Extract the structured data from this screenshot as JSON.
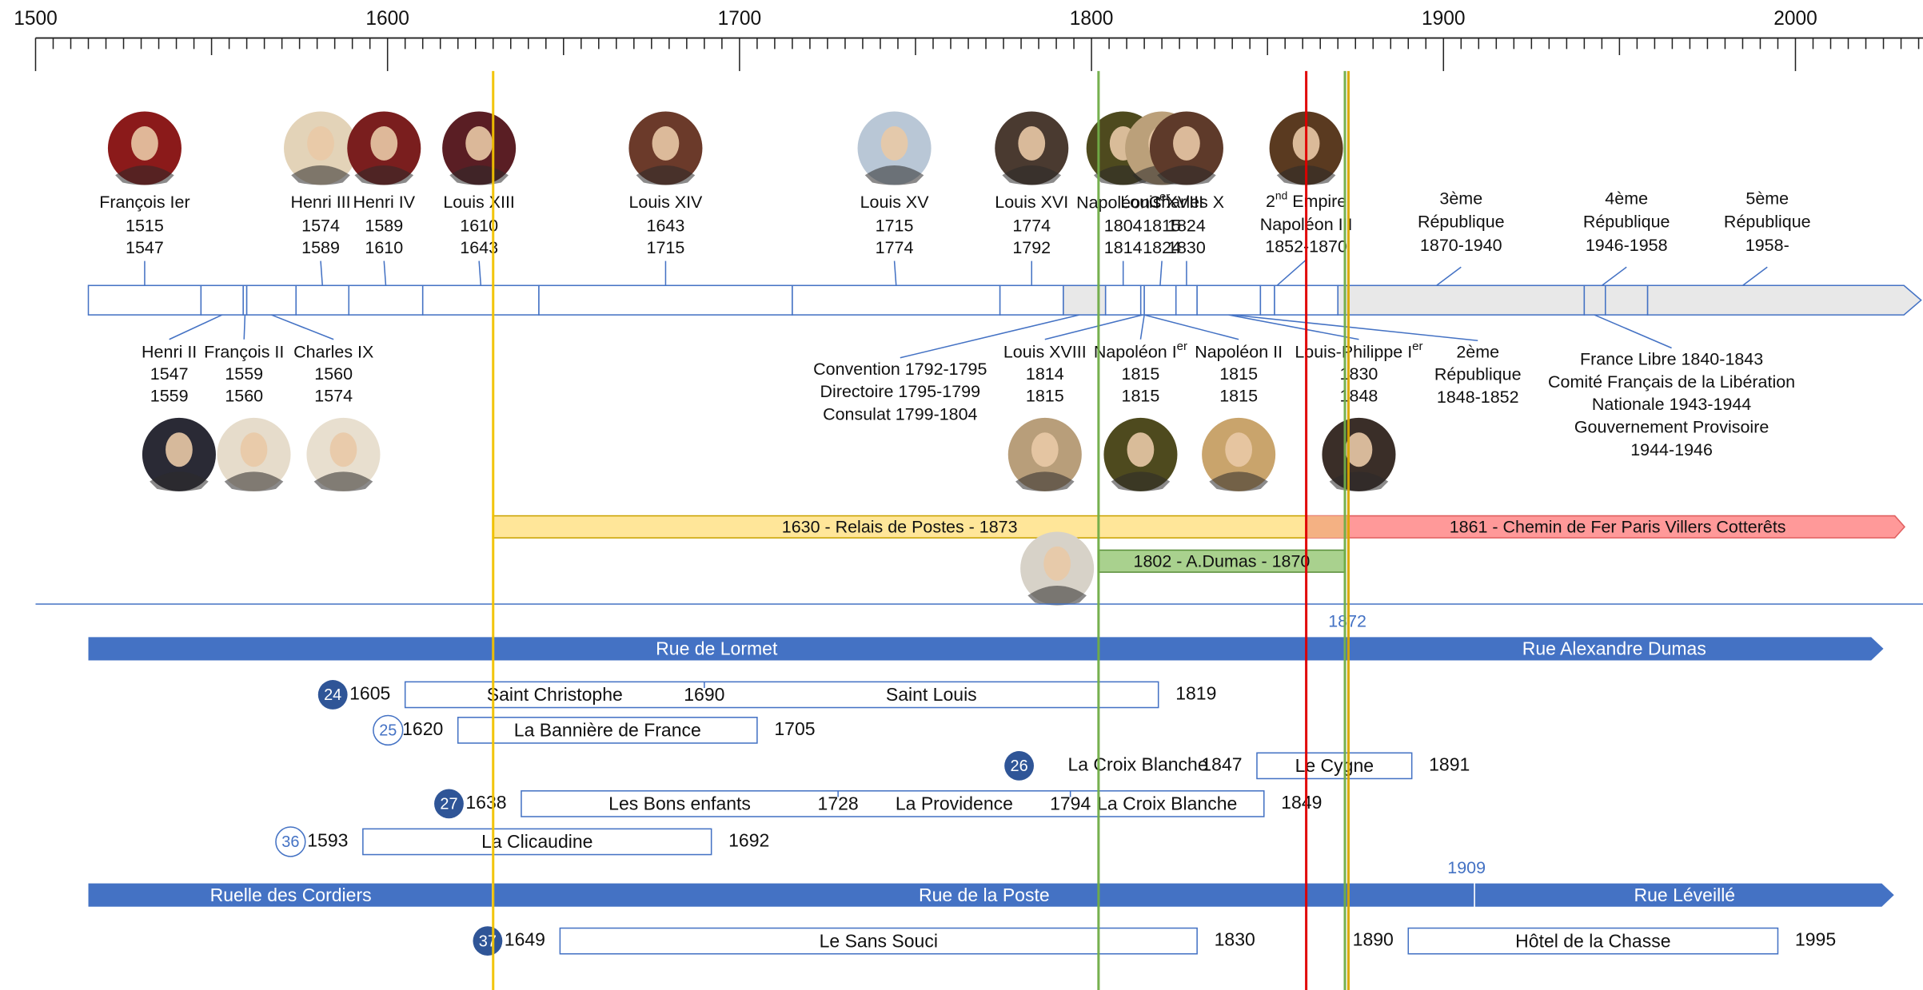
{
  "colors": {
    "blue": "#4472C4",
    "relais": "#FFE699",
    "relais_border": "#C9A200",
    "chemin": "#FF9999",
    "chemin_head": "#F4B183",
    "dumas": "#A9D18E",
    "gray_seg": "#E8E8E8",
    "line_yellow": "#F2C200",
    "line_green": "#70AD47",
    "line_red": "#E00000",
    "line_gold": "#D9A600",
    "year_blue": "#4472C4"
  },
  "axis": {
    "start": 1500,
    "end": 2035,
    "labels": [
      "1500",
      "1600",
      "1700",
      "1800",
      "1900",
      "2000"
    ],
    "minor_step": 5
  },
  "ref_lines": [
    {
      "year": 1630,
      "color": "line_yellow",
      "extent": "full"
    },
    {
      "year": 1802,
      "color": "line_green",
      "extent": "full"
    },
    {
      "year": 1861,
      "color": "line_red",
      "extent": "full"
    },
    {
      "year": 1872,
      "color": "line_green",
      "extent": "full"
    },
    {
      "year": 1873,
      "color": "line_gold",
      "extent": "full"
    }
  ],
  "reign_segments": [
    {
      "from": 1515,
      "to": 1547,
      "icon": "francois-ier-portrait"
    },
    {
      "from": 1547,
      "to": 1559
    },
    {
      "from": 1559,
      "to": 1560
    },
    {
      "from": 1560,
      "to": 1574
    },
    {
      "from": 1574,
      "to": 1589
    },
    {
      "from": 1589,
      "to": 1610
    },
    {
      "from": 1610,
      "to": 1643
    },
    {
      "from": 1643,
      "to": 1715
    },
    {
      "from": 1715,
      "to": 1774
    },
    {
      "from": 1774,
      "to": 1792
    },
    {
      "from": 1792,
      "to": 1804,
      "gray": true
    },
    {
      "from": 1804,
      "to": 1814
    },
    {
      "from": 1814,
      "to": 1815
    },
    {
      "from": 1815,
      "to": 1824
    },
    {
      "from": 1824,
      "to": 1830
    },
    {
      "from": 1830,
      "to": 1848
    },
    {
      "from": 1848,
      "to": 1852
    },
    {
      "from": 1852,
      "to": 1870
    },
    {
      "from": 1870,
      "to": 1940,
      "gray": true
    },
    {
      "from": 1940,
      "to": 1946,
      "gray": true
    },
    {
      "from": 1946,
      "to": 1958,
      "gray": true
    },
    {
      "from": 1958,
      "to": 2035,
      "gray": true
    }
  ],
  "rulers_top": [
    {
      "name": "François Ier",
      "years": [
        "1515",
        "1547"
      ],
      "mid": 1531,
      "portrait": "francois-ier-portrait",
      "tone": "#8B1A1A"
    },
    {
      "name": "Henri III",
      "years": [
        "1574",
        "1589"
      ],
      "mid": 1581,
      "portrait": "henri-iii-portrait",
      "tone": "#E3D3B8"
    },
    {
      "name": "Henri IV",
      "years": [
        "1589",
        "1610"
      ],
      "mid": 1599,
      "portrait": "henri-iv-portrait",
      "tone": "#7A1E1E"
    },
    {
      "name": "Louis XIII",
      "years": [
        "1610",
        "1643"
      ],
      "mid": 1626,
      "portrait": "louis-xiii-portrait",
      "tone": "#5A1E24"
    },
    {
      "name": "Louis XIV",
      "years": [
        "1643",
        "1715"
      ],
      "mid": 1679,
      "portrait": "louis-xiv-portrait",
      "tone": "#6B3A2A"
    },
    {
      "name": "Louis XV",
      "years": [
        "1715",
        "1774"
      ],
      "mid": 1744,
      "portrait": "louis-xv-portrait",
      "tone": "#B9C7D6"
    },
    {
      "name": "Louis XVI",
      "years": [
        "1774",
        "1792"
      ],
      "mid": 1783,
      "portrait": "louis-xvi-portrait",
      "tone": "#4A3A30"
    },
    {
      "name": "Napoléon I",
      "sup": "er",
      "years": [
        "1804",
        "1814"
      ],
      "mid": 1809,
      "portrait": "napoleon-portrait",
      "tone": "#4E4A1E"
    },
    {
      "name": "Louis XVIII",
      "years": [
        "1815",
        "1824"
      ],
      "mid": 1820,
      "portrait": "louis-xviii-portrait",
      "tone": "#BBA07A"
    },
    {
      "name": "Charles X",
      "years": [
        "1824",
        "1830"
      ],
      "mid": 1827,
      "portrait": "charles-x-portrait",
      "tone": "#5E3A2A"
    },
    {
      "name_sup": "nd",
      "name_pre": "2",
      "name_post": " Empire",
      "line2": "Napoléon III",
      "line3": "1852-1870",
      "mid": 1861,
      "portrait": "napoleon-iii-portrait",
      "tone": "#5A3A20"
    },
    {
      "lines": [
        "3ème",
        "République",
        "1870-1940"
      ],
      "mid": 1905
    },
    {
      "lines": [
        "4ème",
        "République",
        "1946-1958"
      ],
      "mid": 1952
    },
    {
      "lines": [
        "5ème",
        "République",
        "1958-"
      ],
      "mid": 1992
    }
  ],
  "rulers_bottom": [
    {
      "name": "Henri II",
      "years": [
        "1547",
        "1559"
      ],
      "mid": 1553,
      "portrait": "henri-ii-portrait",
      "tone": "#2A2A35"
    },
    {
      "name": "François II",
      "years": [
        "1559",
        "1560"
      ],
      "mid": 1560,
      "portrait": "francois-ii-portrait",
      "tone": "#E6DCCB"
    },
    {
      "name": "Charles IX",
      "years": [
        "1560",
        "1574"
      ],
      "mid": 1567,
      "portrait": "charles-ix-portrait",
      "tone": "#E8DFCF"
    },
    {
      "lines": [
        "Convention 1792-1795",
        "Directoire 1795-1799",
        "Consulat 1799-1804"
      ],
      "mid": 1798
    },
    {
      "name": "Louis XVIII",
      "years": [
        "1814",
        "1815"
      ],
      "mid": 1814.5,
      "portrait": "louis-xviii-1814-portrait",
      "tone": "#B89E7A"
    },
    {
      "name": "Napoléon I",
      "sup": "er",
      "years": [
        "1815",
        "1815"
      ],
      "mid": 1815,
      "portrait": "napoleon-1815-portrait",
      "tone": "#4E4A1E"
    },
    {
      "name": "Napoléon II",
      "years": [
        "1815",
        "1815"
      ],
      "mid": 1816,
      "portrait": "napoleon-ii-portrait",
      "tone": "#C9A46C"
    },
    {
      "name": "Louis-Philippe I",
      "sup": "er",
      "years": [
        "1830",
        "1848"
      ],
      "mid": 1839,
      "portrait": "louis-philippe-portrait",
      "tone": "#3A2E28"
    },
    {
      "lines": [
        "2ème",
        "République",
        "1848-1852"
      ],
      "mid": 1850
    },
    {
      "lines": [
        "France Libre 1840-1843",
        "Comité Français de la Libération",
        "Nationale 1943-1944",
        "Gouvernement Provisoire",
        "1944-1946"
      ],
      "mid": 1943
    }
  ],
  "context_bars": [
    {
      "label": "1630 - Relais de Postes - 1873",
      "from": 1630,
      "to": 1861,
      "color": "relais"
    },
    {
      "label": "1861 - Chemin de Fer Paris  Villers Cotterêts",
      "from": 1861,
      "to": 2035,
      "color": "chemin"
    },
    {
      "label": "1802 - A.Dumas - 1870",
      "from": 1802,
      "to": 1872,
      "color": "dumas",
      "portrait": "dumas-portrait"
    }
  ],
  "streets": [
    {
      "row": "a",
      "segments": [
        {
          "label": "Rue de Lormet",
          "from": 1515,
          "to": 1872
        },
        {
          "label": "Rue Alexandre Dumas",
          "from": 1872,
          "to": 2025
        }
      ],
      "change_year": "1872"
    },
    {
      "row": "b",
      "segments": [
        {
          "label": "Ruelle des Cordiers",
          "from": 1515,
          "to": 1630
        },
        {
          "label": "Rue de la Poste",
          "from": 1630,
          "to": 1909
        },
        {
          "label": "Rue Léveillé",
          "from": 1909,
          "to": 2028
        }
      ],
      "change_year": "1909"
    }
  ],
  "houses": [
    {
      "num": "24",
      "style": "filled",
      "start": "1605",
      "end": "1819",
      "from": 1605,
      "to": 1819,
      "parts": [
        {
          "label": "Saint Christophe",
          "from": 1605,
          "to": 1690
        },
        {
          "label": "Saint Louis",
          "from": 1690,
          "to": 1819
        }
      ],
      "marks": [
        {
          "year": "1690",
          "at": 1690
        }
      ]
    },
    {
      "num": "25",
      "style": "outline",
      "start": "1620",
      "end": "1705",
      "from": 1620,
      "to": 1705,
      "parts": [
        {
          "label": "La Bannière de France",
          "from": 1620,
          "to": 1705
        }
      ]
    },
    {
      "num": "26",
      "style": "filled",
      "pre_label": "La Croix Blanche",
      "start": "1847",
      "end": "1891",
      "from": 1847,
      "to": 1891,
      "parts": [
        {
          "label": "Le Cygne",
          "from": 1847,
          "to": 1891
        }
      ]
    },
    {
      "num": "27",
      "style": "filled",
      "start": "1638",
      "end": "1849",
      "from": 1638,
      "to": 1849,
      "parts": [
        {
          "label": "Les Bons enfants",
          "from": 1638,
          "to": 1728
        },
        {
          "label": "La Providence",
          "from": 1728,
          "to": 1794
        },
        {
          "label": "La Croix Blanche",
          "from": 1794,
          "to": 1849
        }
      ],
      "marks": [
        {
          "year": "1728",
          "at": 1728
        },
        {
          "year": "1794",
          "at": 1794
        }
      ]
    },
    {
      "num": "36",
      "style": "outline",
      "start": "1593",
      "end": "1692",
      "from": 1593,
      "to": 1692,
      "parts": [
        {
          "label": "La Clicaudine",
          "from": 1593,
          "to": 1692
        }
      ]
    },
    {
      "num": "37",
      "style": "filled",
      "start": "1649",
      "end": "1830",
      "from": 1649,
      "to": 1830,
      "parts": [
        {
          "label": "Le Sans Souci",
          "from": 1649,
          "to": 1830
        }
      ],
      "extra": {
        "start": "1890",
        "end": "1995",
        "from": 1890,
        "to": 1995,
        "label": "Hôtel de la Chasse"
      }
    }
  ]
}
